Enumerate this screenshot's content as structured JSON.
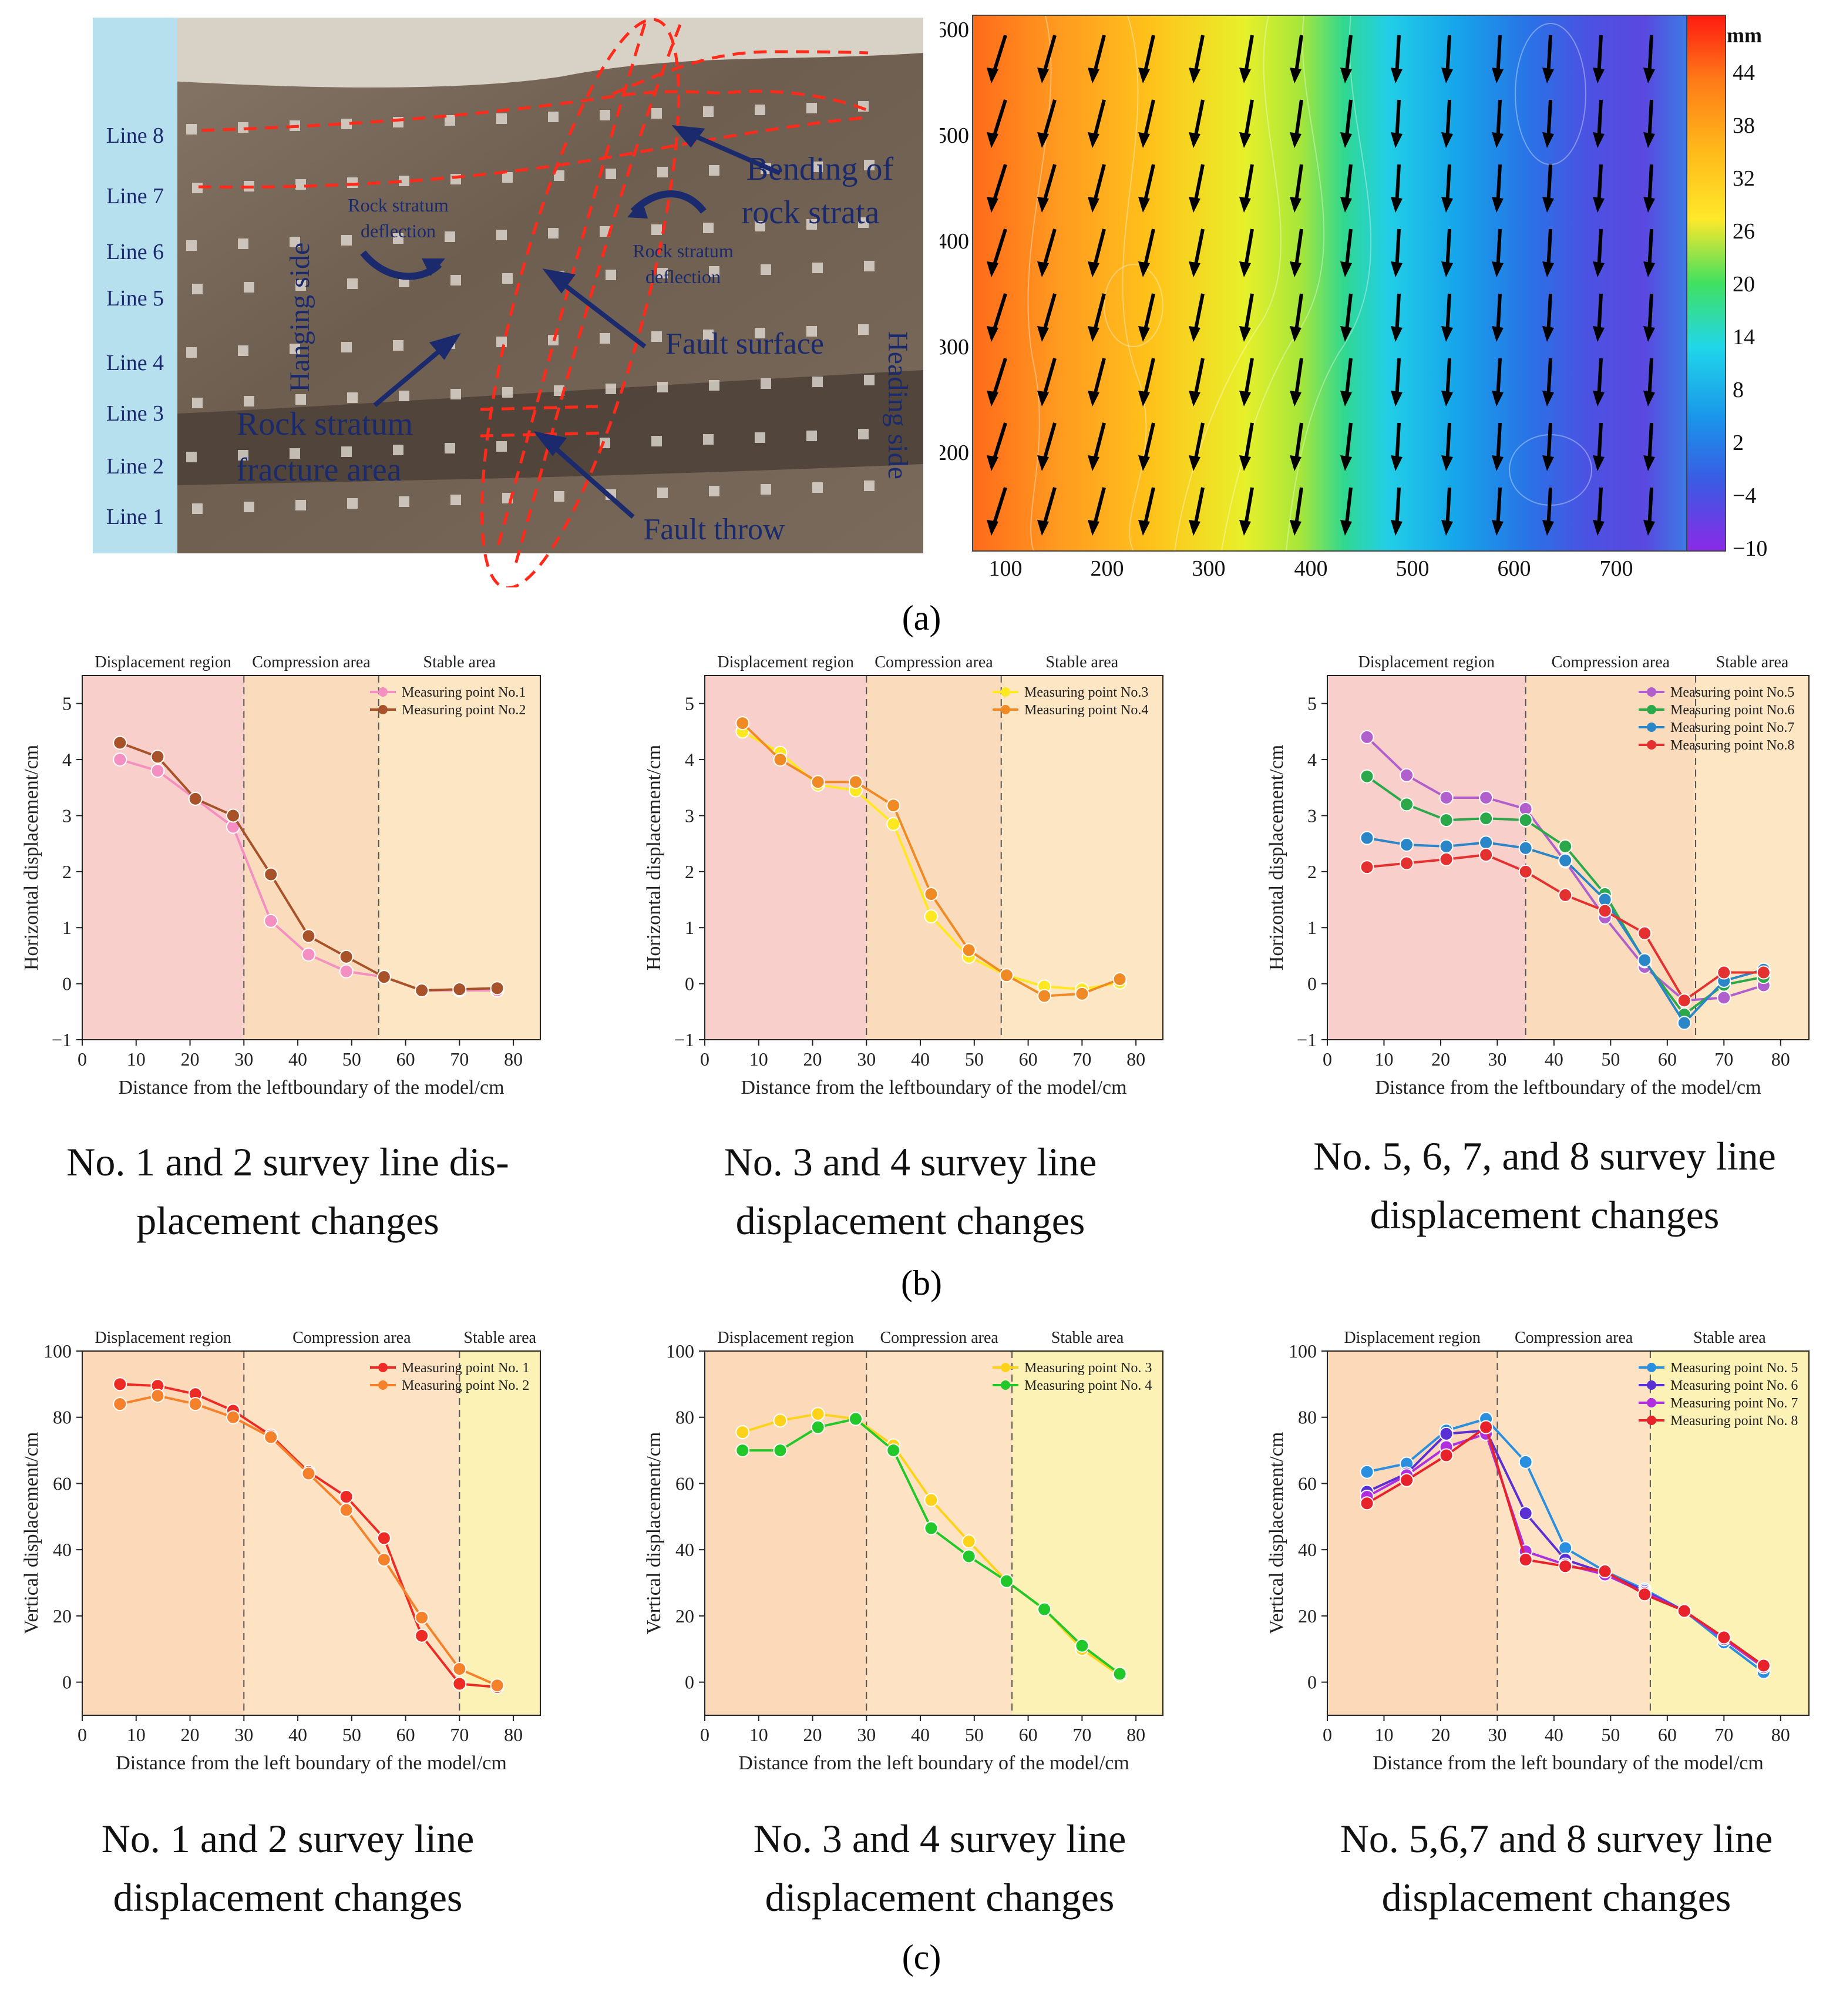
{
  "panel_a": {
    "tag": "(a)",
    "photo": {
      "lines": [
        "Line 8",
        "Line 7",
        "Line 6",
        "Line 5",
        "Line 4",
        "Line 3",
        "Line 2",
        "Line 1"
      ],
      "hanging_side": "Hanging side",
      "heading_side": "Heading side",
      "annotations": {
        "bending": [
          "Bending of",
          "rock strata"
        ],
        "deflection_left": [
          "Rock stratum",
          "deflection"
        ],
        "deflection_right": [
          "Rock stratum",
          "deflection"
        ],
        "fault_surface": "Fault surface",
        "fracture_area": [
          "Rock stratum",
          "fracture area"
        ],
        "fault_throw": "Fault throw"
      }
    },
    "contour": {
      "x_ticks": [
        "100",
        "200",
        "300",
        "400",
        "500",
        "600",
        "700"
      ],
      "y_ticks": [
        "200",
        "300",
        "400",
        "500",
        "600"
      ],
      "colorbar_unit": "mm",
      "colorbar_ticks": [
        "44",
        "38",
        "32",
        "26",
        "20",
        "14",
        "8",
        "2",
        "−4",
        "−10"
      ]
    }
  },
  "panel_b": {
    "tag": "(b)"
  },
  "panel_c": {
    "tag": "(c)"
  },
  "chart_data": [
    {
      "id": "b1",
      "type": "line",
      "caption_lines": [
        "No. 1 and 2 survey line dis-",
        "placement changes"
      ],
      "xlabel": "Distance from the leftboundary of the model/cm",
      "ylabel": "Horizontal displacement/cm",
      "xlim": [
        0,
        85
      ],
      "ylim": [
        -1,
        5.5
      ],
      "xticks": [
        0,
        10,
        20,
        30,
        40,
        50,
        60,
        70,
        80
      ],
      "yticks": [
        -1,
        0,
        1,
        2,
        3,
        4,
        5
      ],
      "regions": [
        {
          "label": "Displacement region",
          "from": 0,
          "to": 30,
          "color": "#f8cfcb"
        },
        {
          "label": "Compression area",
          "from": 30,
          "to": 55,
          "color": "#fadcbc"
        },
        {
          "label": "Stable area",
          "from": 55,
          "to": 85,
          "color": "#fde6c4"
        }
      ],
      "series": [
        {
          "name": "Measuring point No.1",
          "color": "#f48fc2",
          "x": [
            7,
            14,
            21,
            28,
            35,
            42,
            49,
            56,
            63,
            70,
            77
          ],
          "y": [
            4.0,
            3.8,
            3.3,
            2.8,
            1.12,
            0.52,
            0.22,
            0.12,
            -0.12,
            -0.12,
            -0.12
          ]
        },
        {
          "name": "Measuring point No.2",
          "color": "#a8522a",
          "x": [
            7,
            14,
            21,
            28,
            35,
            42,
            49,
            56,
            63,
            70,
            77
          ],
          "y": [
            4.3,
            4.05,
            3.3,
            3.0,
            1.95,
            0.85,
            0.48,
            0.12,
            -0.12,
            -0.1,
            -0.08
          ]
        }
      ]
    },
    {
      "id": "b2",
      "type": "line",
      "caption_lines": [
        "No. 3 and 4 survey line",
        "displacement changes"
      ],
      "xlabel": "Distance from the leftboundary of the model/cm",
      "ylabel": "Horizontal displacement/cm",
      "xlim": [
        0,
        85
      ],
      "ylim": [
        -1,
        5.5
      ],
      "xticks": [
        0,
        10,
        20,
        30,
        40,
        50,
        60,
        70,
        80
      ],
      "yticks": [
        -1,
        0,
        1,
        2,
        3,
        4,
        5
      ],
      "regions": [
        {
          "label": "Displacement region",
          "from": 0,
          "to": 30,
          "color": "#f8cfcb"
        },
        {
          "label": "Compression area",
          "from": 30,
          "to": 55,
          "color": "#fadcbc"
        },
        {
          "label": "Stable area",
          "from": 55,
          "to": 85,
          "color": "#fde6c4"
        }
      ],
      "series": [
        {
          "name": "Measuring point No.3",
          "color": "#ffe81f",
          "x": [
            7,
            14,
            21,
            28,
            35,
            42,
            49,
            56,
            63,
            70,
            77
          ],
          "y": [
            4.5,
            4.12,
            3.55,
            3.45,
            2.85,
            1.2,
            0.48,
            0.15,
            -0.05,
            -0.1,
            0.02
          ]
        },
        {
          "name": "Measuring point No.4",
          "color": "#f08a24",
          "x": [
            7,
            14,
            21,
            28,
            35,
            42,
            49,
            56,
            63,
            70,
            77
          ],
          "y": [
            4.65,
            4.0,
            3.6,
            3.6,
            3.18,
            1.6,
            0.6,
            0.15,
            -0.22,
            -0.18,
            0.08
          ]
        }
      ]
    },
    {
      "id": "b3",
      "type": "line",
      "caption_lines": [
        "No. 5, 6, 7, and 8 survey line",
        "displacement changes"
      ],
      "xlabel": "Distance from the leftboundary of the model/cm",
      "ylabel": "Horizontal displacement/cm",
      "xlim": [
        0,
        85
      ],
      "ylim": [
        -1,
        5.5
      ],
      "xticks": [
        0,
        10,
        20,
        30,
        40,
        50,
        60,
        70,
        80
      ],
      "yticks": [
        -1,
        0,
        1,
        2,
        3,
        4,
        5
      ],
      "regions": [
        {
          "label": "Displacement region",
          "from": 0,
          "to": 35,
          "color": "#f8cfcb"
        },
        {
          "label": "Compression area",
          "from": 35,
          "to": 65,
          "color": "#fadcbc"
        },
        {
          "label": "Stable area",
          "from": 65,
          "to": 85,
          "color": "#fde6c4"
        }
      ],
      "series": [
        {
          "name": "Measuring point No.5",
          "color": "#b25fce",
          "x": [
            7,
            14,
            21,
            28,
            35,
            42,
            49,
            56,
            63,
            70,
            77
          ],
          "y": [
            4.4,
            3.72,
            3.32,
            3.32,
            3.12,
            2.18,
            1.18,
            0.3,
            -0.3,
            -0.25,
            -0.03
          ]
        },
        {
          "name": "Measuring point No.6",
          "color": "#2aa84a",
          "x": [
            7,
            14,
            21,
            28,
            35,
            42,
            49,
            56,
            63,
            70,
            77
          ],
          "y": [
            3.7,
            3.2,
            2.92,
            2.95,
            2.92,
            2.45,
            1.6,
            0.4,
            -0.55,
            -0.02,
            0.12
          ]
        },
        {
          "name": "Measuring point No.7",
          "color": "#2b86c8",
          "x": [
            7,
            14,
            21,
            28,
            35,
            42,
            49,
            56,
            63,
            70,
            77
          ],
          "y": [
            2.6,
            2.48,
            2.45,
            2.52,
            2.42,
            2.2,
            1.5,
            0.42,
            -0.7,
            0.05,
            0.25
          ]
        },
        {
          "name": "Measuring point No.8",
          "color": "#e53030",
          "x": [
            7,
            14,
            21,
            28,
            35,
            42,
            49,
            56,
            63,
            70,
            77
          ],
          "y": [
            2.08,
            2.15,
            2.22,
            2.3,
            2.0,
            1.58,
            1.3,
            0.9,
            -0.3,
            0.2,
            0.2
          ]
        }
      ]
    },
    {
      "id": "c1",
      "type": "line",
      "caption_lines": [
        "No. 1 and 2 survey line",
        "displacement changes"
      ],
      "xlabel": "Distance from the left boundary of the model/cm",
      "ylabel": "Vertical displacement/cm",
      "xlim": [
        0,
        85
      ],
      "ylim": [
        -10,
        100
      ],
      "xticks": [
        0,
        10,
        20,
        30,
        40,
        50,
        60,
        70,
        80
      ],
      "yticks": [
        0,
        20,
        40,
        60,
        80,
        100
      ],
      "regions": [
        {
          "label": "Displacement region",
          "from": 0,
          "to": 30,
          "color": "#fcd9b9"
        },
        {
          "label": "Compression area",
          "from": 30,
          "to": 70,
          "color": "#fde3c3"
        },
        {
          "label": "Stable area",
          "from": 70,
          "to": 85,
          "color": "#fdf2b6"
        }
      ],
      "series": [
        {
          "name": "Measuring point No. 1",
          "color": "#ee2a24",
          "x": [
            7,
            14,
            21,
            28,
            35,
            42,
            49,
            56,
            63,
            70,
            77
          ],
          "y": [
            90,
            89.5,
            87,
            82,
            74.5,
            63.5,
            56,
            43.5,
            14,
            -0.5,
            -1.5
          ]
        },
        {
          "name": "Measuring point No. 2",
          "color": "#f5812a",
          "x": [
            7,
            14,
            21,
            28,
            35,
            42,
            49,
            56,
            63,
            70,
            77
          ],
          "y": [
            84,
            86.5,
            84,
            80,
            74,
            63,
            52,
            37,
            19.5,
            4,
            -1
          ]
        }
      ]
    },
    {
      "id": "c2",
      "type": "line",
      "caption_lines": [
        "No. 3 and 4 survey line",
        "displacement changes"
      ],
      "xlabel": "Distance from the left boundary of the model/cm",
      "ylabel": "Vertical displacement/cm",
      "xlim": [
        0,
        85
      ],
      "ylim": [
        -10,
        100
      ],
      "xticks": [
        0,
        10,
        20,
        30,
        40,
        50,
        60,
        70,
        80
      ],
      "yticks": [
        0,
        20,
        40,
        60,
        80,
        100
      ],
      "regions": [
        {
          "label": "Displacement region",
          "from": 0,
          "to": 30,
          "color": "#fcd9b9"
        },
        {
          "label": "Compression area",
          "from": 30,
          "to": 57,
          "color": "#fde3c3"
        },
        {
          "label": "Stable area",
          "from": 57,
          "to": 85,
          "color": "#fdf2b6"
        }
      ],
      "series": [
        {
          "name": "Measuring point No. 3",
          "color": "#ffd21a",
          "x": [
            7,
            14,
            21,
            28,
            35,
            42,
            49,
            56,
            63,
            70,
            77
          ],
          "y": [
            75.5,
            79,
            81,
            79.5,
            71.5,
            55,
            42.5,
            30.5,
            22,
            10,
            2
          ]
        },
        {
          "name": "Measuring point No. 4",
          "color": "#22c82a",
          "x": [
            7,
            14,
            21,
            28,
            35,
            42,
            49,
            56,
            63,
            70,
            77
          ],
          "y": [
            70,
            70,
            77,
            79.5,
            70,
            46.5,
            38,
            30.5,
            22,
            11,
            2.5
          ]
        }
      ]
    },
    {
      "id": "c3",
      "type": "line",
      "caption_lines": [
        "No. 5,6,7 and 8 survey line",
        "displacement changes"
      ],
      "xlabel": "Distance from the left boundary of the model/cm",
      "ylabel": "Vertical displacement/cm",
      "xlim": [
        0,
        85
      ],
      "ylim": [
        -10,
        100
      ],
      "xticks": [
        0,
        10,
        20,
        30,
        40,
        50,
        60,
        70,
        80
      ],
      "yticks": [
        0,
        20,
        40,
        60,
        80,
        100
      ],
      "regions": [
        {
          "label": "Displacement region",
          "from": 0,
          "to": 30,
          "color": "#fcd9b9"
        },
        {
          "label": "Compression area",
          "from": 30,
          "to": 57,
          "color": "#fde3c3"
        },
        {
          "label": "Stable area",
          "from": 57,
          "to": 85,
          "color": "#fdf2b6"
        }
      ],
      "series": [
        {
          "name": "Measuring point No. 5",
          "color": "#2b8fe0",
          "x": [
            7,
            14,
            21,
            28,
            35,
            42,
            49,
            56,
            63,
            70,
            77
          ],
          "y": [
            63.5,
            66,
            76,
            79.5,
            66.5,
            40.5,
            33.5,
            28,
            21.5,
            12,
            3
          ]
        },
        {
          "name": "Measuring point No. 6",
          "color": "#5a2fd4",
          "x": [
            7,
            14,
            21,
            28,
            35,
            42,
            49,
            56,
            63,
            70,
            77
          ],
          "y": [
            57.5,
            63,
            75,
            76,
            51,
            37,
            33,
            27.5,
            21.5,
            13,
            4.5
          ]
        },
        {
          "name": "Measuring point No. 7",
          "color": "#b030e0",
          "x": [
            7,
            14,
            21,
            28,
            35,
            42,
            49,
            56,
            63,
            70,
            77
          ],
          "y": [
            56,
            62.5,
            71,
            75,
            39.5,
            35.5,
            32.5,
            27,
            21.5,
            13,
            4.5
          ]
        },
        {
          "name": "Measuring point No. 8",
          "color": "#e8222a",
          "x": [
            7,
            14,
            21,
            28,
            35,
            42,
            49,
            56,
            63,
            70,
            77
          ],
          "y": [
            54,
            61,
            68.5,
            77,
            37,
            35,
            33.5,
            26.5,
            21.5,
            13.5,
            5
          ]
        }
      ]
    }
  ]
}
